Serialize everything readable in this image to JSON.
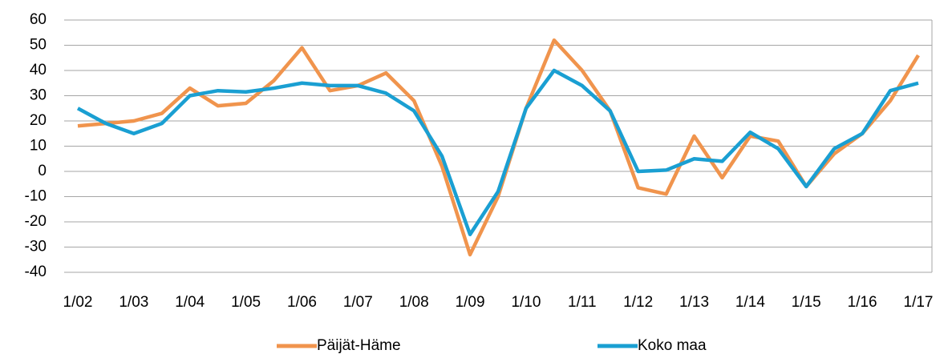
{
  "chart_data": {
    "type": "line",
    "categories": [
      "1/02",
      null,
      "1/03",
      null,
      "1/04",
      null,
      "1/05",
      null,
      "1/06",
      null,
      "1/07",
      null,
      "1/08",
      null,
      "1/09",
      null,
      "1/10",
      null,
      "1/11",
      null,
      "1/12",
      null,
      "1/13",
      null,
      "1/14",
      null,
      "1/15",
      null,
      "1/16",
      null,
      "1/17"
    ],
    "series": [
      {
        "name": "Päijät-Häme",
        "color": "#f0944d",
        "values": [
          18,
          19,
          20,
          23,
          33,
          26,
          27,
          36,
          49,
          32,
          34,
          39,
          28,
          2,
          -33,
          -10,
          25,
          52,
          40,
          24,
          -6.5,
          -9,
          14,
          -2.5,
          14,
          12,
          -6,
          7,
          15,
          28,
          46
        ]
      },
      {
        "name": "Koko maa",
        "color": "#1a9fd2",
        "values": [
          25,
          19,
          15,
          19,
          30,
          32,
          31.5,
          33,
          35,
          34,
          34,
          31,
          24,
          6,
          -25,
          -8,
          25,
          40,
          34,
          24,
          0,
          0.5,
          5,
          4,
          15.5,
          9,
          -6,
          9,
          15,
          32,
          35
        ]
      }
    ],
    "ylim": [
      -40,
      60
    ],
    "yticks": [
      -40,
      -30,
      -20,
      -10,
      0,
      10,
      20,
      30,
      40,
      50,
      60
    ],
    "grid": true,
    "legend": "bottom"
  }
}
